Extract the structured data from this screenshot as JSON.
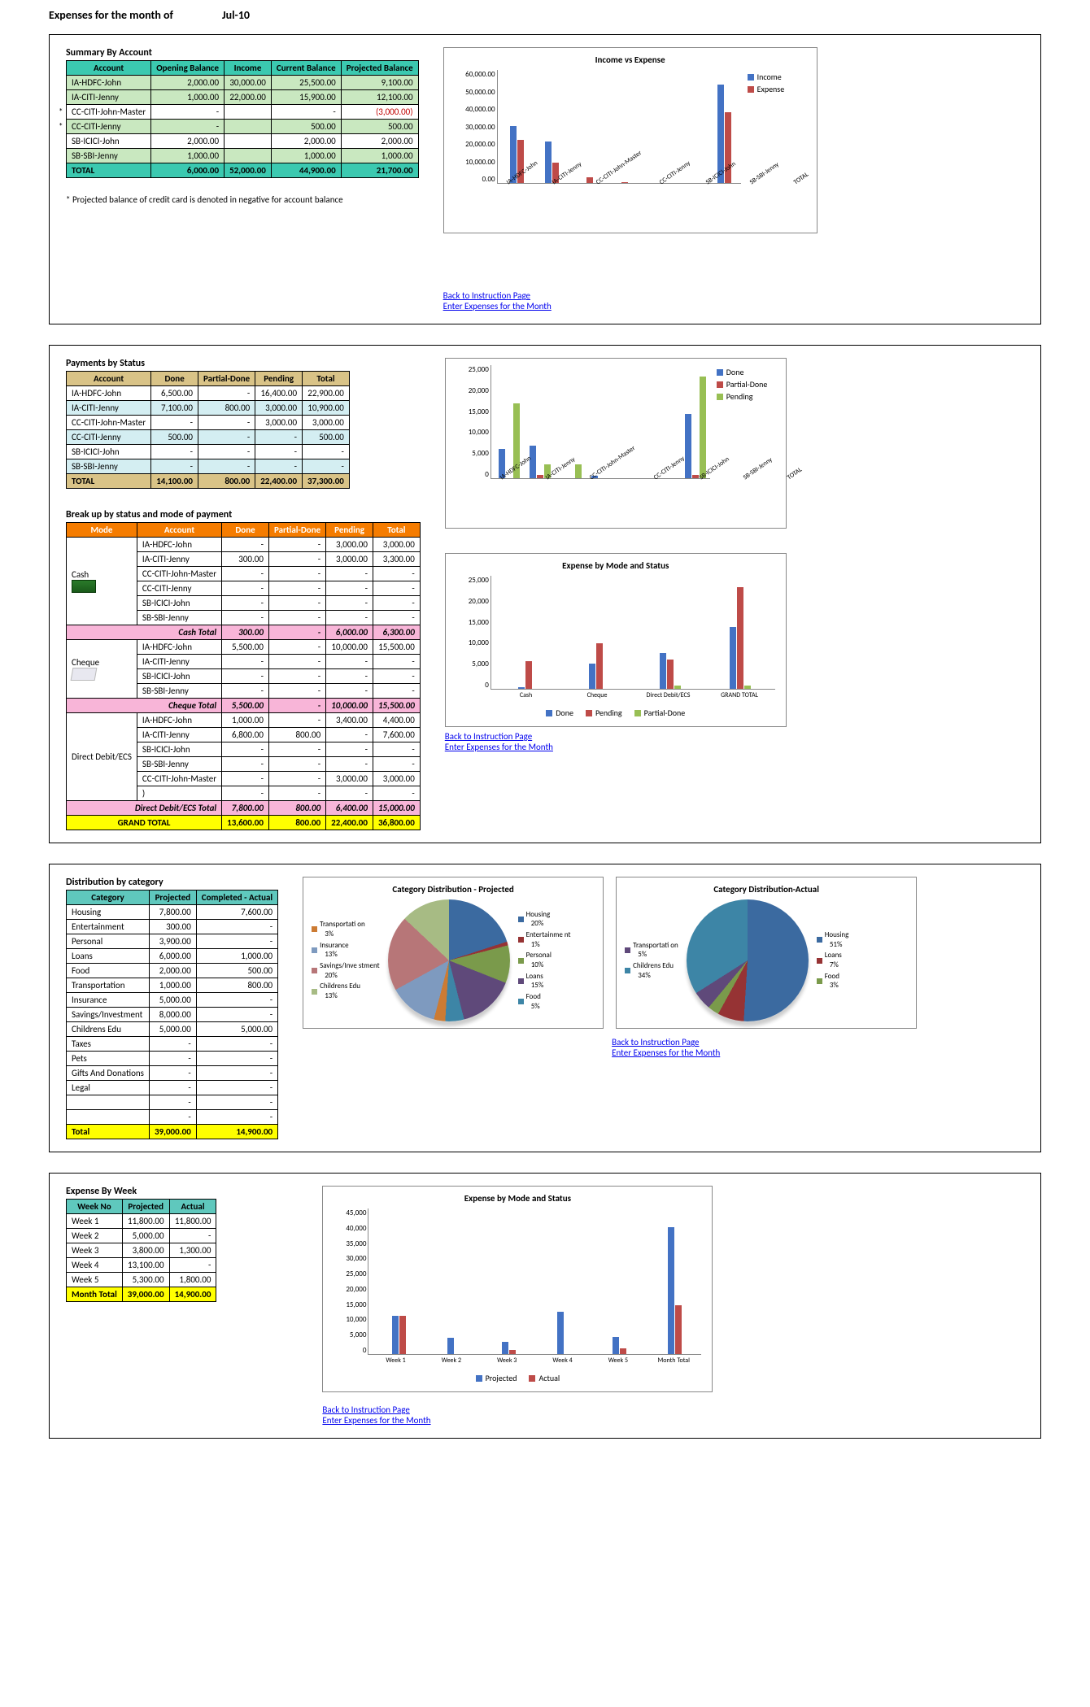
{
  "header": {
    "label": "Expenses for the month of",
    "month": "Jul-10"
  },
  "colors": {
    "income": "#4372c4",
    "expense": "#be4b48",
    "done": "#4372c4",
    "partial": "#be4b48",
    "pending": "#98bf54",
    "projected": "#4372c4",
    "actual": "#be4b48"
  },
  "links": {
    "back": "Back to Instruction Page",
    "enter": "Enter Expenses for the Month"
  },
  "summary": {
    "title": "Summary By Account",
    "headers": [
      "Account",
      "Opening Balance",
      "Income",
      "Current Balance",
      "Projected Balance"
    ],
    "rows": [
      {
        "acct": "IA-HDFC-John",
        "ob": "2,000.00",
        "inc": "30,000.00",
        "cb": "25,500.00",
        "pb": "9,100.00",
        "hl": true
      },
      {
        "acct": "IA-CITI-Jenny",
        "ob": "1,000.00",
        "inc": "22,000.00",
        "cb": "15,900.00",
        "pb": "12,100.00",
        "hl": true
      },
      {
        "acct": "CC-CITI-John-Master",
        "ob": "-",
        "inc": "",
        "cb": "-",
        "pb": "(3,000.00)",
        "neg": true,
        "star": true
      },
      {
        "acct": "CC-CITI-Jenny",
        "ob": "-",
        "inc": "",
        "cb": "500.00",
        "pb": "500.00",
        "hl": true,
        "star": true
      },
      {
        "acct": "SB-ICICI-John",
        "ob": "2,000.00",
        "inc": "",
        "cb": "2,000.00",
        "pb": "2,000.00"
      },
      {
        "acct": "SB-SBI-Jenny",
        "ob": "1,000.00",
        "inc": "",
        "cb": "1,000.00",
        "pb": "1,000.00",
        "hl": true
      }
    ],
    "total": {
      "label": "TOTAL",
      "ob": "6,000.00",
      "inc": "52,000.00",
      "cb": "44,900.00",
      "pb": "21,700.00"
    },
    "footnote": "* Projected balance of credit card is denoted in negative for account balance",
    "chart": {
      "title": "Income vs Expense",
      "ylim": 60000,
      "ytick": 10000,
      "cats": [
        "IA-HDFC-John",
        "IA-CITI-Jenny",
        "CC-CITI-John-Master",
        "CC-CITI-Jenny",
        "SB-ICICI-John",
        "SB-SBI-Jenny",
        "TOTAL"
      ],
      "income": [
        30000,
        22000,
        0,
        0,
        0,
        0,
        52000
      ],
      "expense": [
        22900,
        10900,
        3000,
        500,
        0,
        0,
        37300
      ],
      "legend": [
        "Income",
        "Expense"
      ]
    }
  },
  "payments": {
    "title": "Payments by Status",
    "headers": [
      "Account",
      "Done",
      "Partial-Done",
      "Pending",
      "Total"
    ],
    "rows": [
      {
        "acct": "IA-HDFC-John",
        "d": "6,500.00",
        "p": "-",
        "pe": "16,400.00",
        "t": "22,900.00"
      },
      {
        "acct": "IA-CITI-Jenny",
        "d": "7,100.00",
        "p": "800.00",
        "pe": "3,000.00",
        "t": "10,900.00",
        "hl": true
      },
      {
        "acct": "CC-CITI-John-Master",
        "d": "-",
        "p": "-",
        "pe": "3,000.00",
        "t": "3,000.00"
      },
      {
        "acct": "CC-CITI-Jenny",
        "d": "500.00",
        "p": "-",
        "pe": "-",
        "t": "500.00",
        "hl": true
      },
      {
        "acct": "SB-ICICI-John",
        "d": "-",
        "p": "-",
        "pe": "-",
        "t": "-"
      },
      {
        "acct": "SB-SBI-Jenny",
        "d": "-",
        "p": "-",
        "pe": "-",
        "t": "-",
        "hl": true
      }
    ],
    "total": {
      "label": "TOTAL",
      "d": "14,100.00",
      "p": "800.00",
      "pe": "22,400.00",
      "t": "37,300.00"
    },
    "chart": {
      "ylim": 25000,
      "ytick": 5000,
      "cats": [
        "IA-HDFC-John",
        "IA-CITI-Jenny",
        "CC-CITI-John-Master",
        "CC-CITI-Jenny",
        "SB-ICICI-John",
        "SB-SBI-Jenny",
        "TOTAL"
      ],
      "done": [
        6500,
        7100,
        0,
        500,
        0,
        0,
        14100
      ],
      "partial": [
        0,
        800,
        0,
        0,
        0,
        0,
        800
      ],
      "pending": [
        16400,
        3000,
        3000,
        0,
        0,
        0,
        22400
      ],
      "legend": [
        "Done",
        "Partial-Done",
        "Pending"
      ]
    }
  },
  "mode": {
    "title": "Break up by status and mode of payment",
    "headers": [
      "Mode",
      "Account",
      "Done",
      "Partial-Done",
      "Pending",
      "Total"
    ],
    "groups": [
      {
        "mode": "Cash",
        "totalLabel": "Cash Total",
        "d": "300.00",
        "p": "-",
        "pe": "6,000.00",
        "t": "6,300.00",
        "rows": [
          {
            "acct": "IA-HDFC-John",
            "d": "-",
            "p": "-",
            "pe": "3,000.00",
            "t": "3,000.00"
          },
          {
            "acct": "IA-CITI-Jenny",
            "d": "300.00",
            "p": "-",
            "pe": "3,000.00",
            "t": "3,300.00"
          },
          {
            "acct": "CC-CITI-John-Master",
            "d": "-",
            "p": "-",
            "pe": "-",
            "t": "-"
          },
          {
            "acct": "CC-CITI-Jenny",
            "d": "-",
            "p": "-",
            "pe": "-",
            "t": "-"
          },
          {
            "acct": "SB-ICICI-John",
            "d": "-",
            "p": "-",
            "pe": "-",
            "t": "-"
          },
          {
            "acct": "SB-SBI-Jenny",
            "d": "-",
            "p": "-",
            "pe": "-",
            "t": "-"
          }
        ]
      },
      {
        "mode": "Cheque",
        "totalLabel": "Cheque Total",
        "d": "5,500.00",
        "p": "-",
        "pe": "10,000.00",
        "t": "15,500.00",
        "rows": [
          {
            "acct": "IA-HDFC-John",
            "d": "5,500.00",
            "p": "-",
            "pe": "10,000.00",
            "t": "15,500.00"
          },
          {
            "acct": "IA-CITI-Jenny",
            "d": "-",
            "p": "-",
            "pe": "-",
            "t": "-"
          },
          {
            "acct": "SB-ICICI-John",
            "d": "-",
            "p": "-",
            "pe": "-",
            "t": "-"
          },
          {
            "acct": "SB-SBI-Jenny",
            "d": "-",
            "p": "-",
            "pe": "-",
            "t": "-"
          }
        ]
      },
      {
        "mode": "Direct Debit/ECS",
        "totalLabel": "Direct Debit/ECS Total",
        "d": "7,800.00",
        "p": "800.00",
        "pe": "6,400.00",
        "t": "15,000.00",
        "rows": [
          {
            "acct": "IA-HDFC-John",
            "d": "1,000.00",
            "p": "-",
            "pe": "3,400.00",
            "t": "4,400.00"
          },
          {
            "acct": "IA-CITI-Jenny",
            "d": "6,800.00",
            "p": "800.00",
            "pe": "-",
            "t": "7,600.00"
          },
          {
            "acct": "SB-ICICI-John",
            "d": "-",
            "p": "-",
            "pe": "-",
            "t": "-"
          },
          {
            "acct": "SB-SBI-Jenny",
            "d": "-",
            "p": "-",
            "pe": "-",
            "t": "-"
          },
          {
            "acct": "CC-CITI-John-Master",
            "d": "-",
            "p": "-",
            "pe": "3,000.00",
            "t": "3,000.00"
          },
          {
            "acct": ")",
            "d": "-",
            "p": "-",
            "pe": "-",
            "t": "-"
          }
        ]
      }
    ],
    "grand": {
      "label": "GRAND TOTAL",
      "d": "13,600.00",
      "p": "800.00",
      "pe": "22,400.00",
      "t": "36,800.00"
    },
    "chart": {
      "title": "Expense by Mode and Status",
      "ylim": 25000,
      "ytick": 5000,
      "cats": [
        "Cash",
        "Cheque",
        "Direct Debit/ECS",
        "GRAND TOTAL"
      ],
      "done": [
        300,
        5500,
        7800,
        13600
      ],
      "pending": [
        6000,
        10000,
        6400,
        22400
      ],
      "partial": [
        0,
        0,
        800,
        800
      ],
      "legend": [
        "Done",
        "Pending",
        "Partial-Done"
      ]
    }
  },
  "category": {
    "title": "Distribution by category",
    "headers": [
      "Category",
      "Projected",
      "Completed - Actual"
    ],
    "rows": [
      {
        "c": "Housing",
        "p": "7,800.00",
        "a": "7,600.00"
      },
      {
        "c": "Entertainment",
        "p": "300.00",
        "a": "-"
      },
      {
        "c": "Personal",
        "p": "3,900.00",
        "a": "-"
      },
      {
        "c": "Loans",
        "p": "6,000.00",
        "a": "1,000.00"
      },
      {
        "c": "Food",
        "p": "2,000.00",
        "a": "500.00"
      },
      {
        "c": "Transportation",
        "p": "1,000.00",
        "a": "800.00"
      },
      {
        "c": "Insurance",
        "p": "5,000.00",
        "a": "-"
      },
      {
        "c": "Savings/Investment",
        "p": "8,000.00",
        "a": "-"
      },
      {
        "c": "Childrens Edu",
        "p": "5,000.00",
        "a": "5,000.00"
      },
      {
        "c": "Taxes",
        "p": "-",
        "a": "-"
      },
      {
        "c": "Pets",
        "p": "-",
        "a": "-"
      },
      {
        "c": "Gifts And Donations",
        "p": "-",
        "a": "-"
      },
      {
        "c": "Legal",
        "p": "-",
        "a": "-"
      },
      {
        "c": "",
        "p": "-",
        "a": "-"
      },
      {
        "c": "",
        "p": "-",
        "a": "-"
      }
    ],
    "total": {
      "label": "Total",
      "p": "39,000.00",
      "a": "14,900.00"
    },
    "pie1": {
      "title": "Category Distribution - Projected",
      "slices": [
        {
          "l": "Housing",
          "pct": 20,
          "col": "#3b6aa0"
        },
        {
          "l": "Entertainme nt",
          "pct": 1,
          "col": "#963334"
        },
        {
          "l": "Personal",
          "pct": 10,
          "col": "#7a9a4b"
        },
        {
          "l": "Loans",
          "pct": 15,
          "col": "#5f497a"
        },
        {
          "l": "Food",
          "pct": 5,
          "col": "#3d85a6"
        },
        {
          "l": "Transportati on",
          "pct": 3,
          "col": "#cc7b33"
        },
        {
          "l": "Insurance",
          "pct": 13,
          "col": "#7e9abf"
        },
        {
          "l": "Savings/Inve stment",
          "pct": 20,
          "col": "#b77678"
        },
        {
          "l": "Childrens Edu",
          "pct": 13,
          "col": "#a7bb84"
        }
      ]
    },
    "pie2": {
      "title": "Category Distribution-Actual",
      "slices": [
        {
          "l": "Housing",
          "pct": 51,
          "col": "#3b6aa0"
        },
        {
          "l": "Loans",
          "pct": 7,
          "col": "#963334"
        },
        {
          "l": "Food",
          "pct": 3,
          "col": "#7a9a4b"
        },
        {
          "l": "Transportati on",
          "pct": 5,
          "col": "#5f497a"
        },
        {
          "l": "Childrens Edu",
          "pct": 34,
          "col": "#3d85a6"
        }
      ]
    }
  },
  "week": {
    "title": "Expense By Week",
    "headers": [
      "Week No",
      "Projected",
      "Actual"
    ],
    "rows": [
      {
        "w": "Week 1",
        "p": "11,800.00",
        "a": "11,800.00"
      },
      {
        "w": "Week 2",
        "p": "5,000.00",
        "a": "-"
      },
      {
        "w": "Week 3",
        "p": "3,800.00",
        "a": "1,300.00"
      },
      {
        "w": "Week 4",
        "p": "13,100.00",
        "a": "-"
      },
      {
        "w": "Week 5",
        "p": "5,300.00",
        "a": "1,800.00"
      }
    ],
    "total": {
      "label": "Month Total",
      "p": "39,000.00",
      "a": "14,900.00"
    },
    "chart": {
      "title": "Expense by Mode and Status",
      "ylim": 45000,
      "ytick": 5000,
      "cats": [
        "Week 1",
        "Week 2",
        "Week 3",
        "Week 4",
        "Week 5",
        "Month Total"
      ],
      "projected": [
        11800,
        5000,
        3800,
        13100,
        5300,
        39000
      ],
      "actual": [
        11800,
        0,
        1300,
        0,
        1800,
        14900
      ],
      "legend": [
        "Projected",
        "Actual"
      ]
    }
  }
}
